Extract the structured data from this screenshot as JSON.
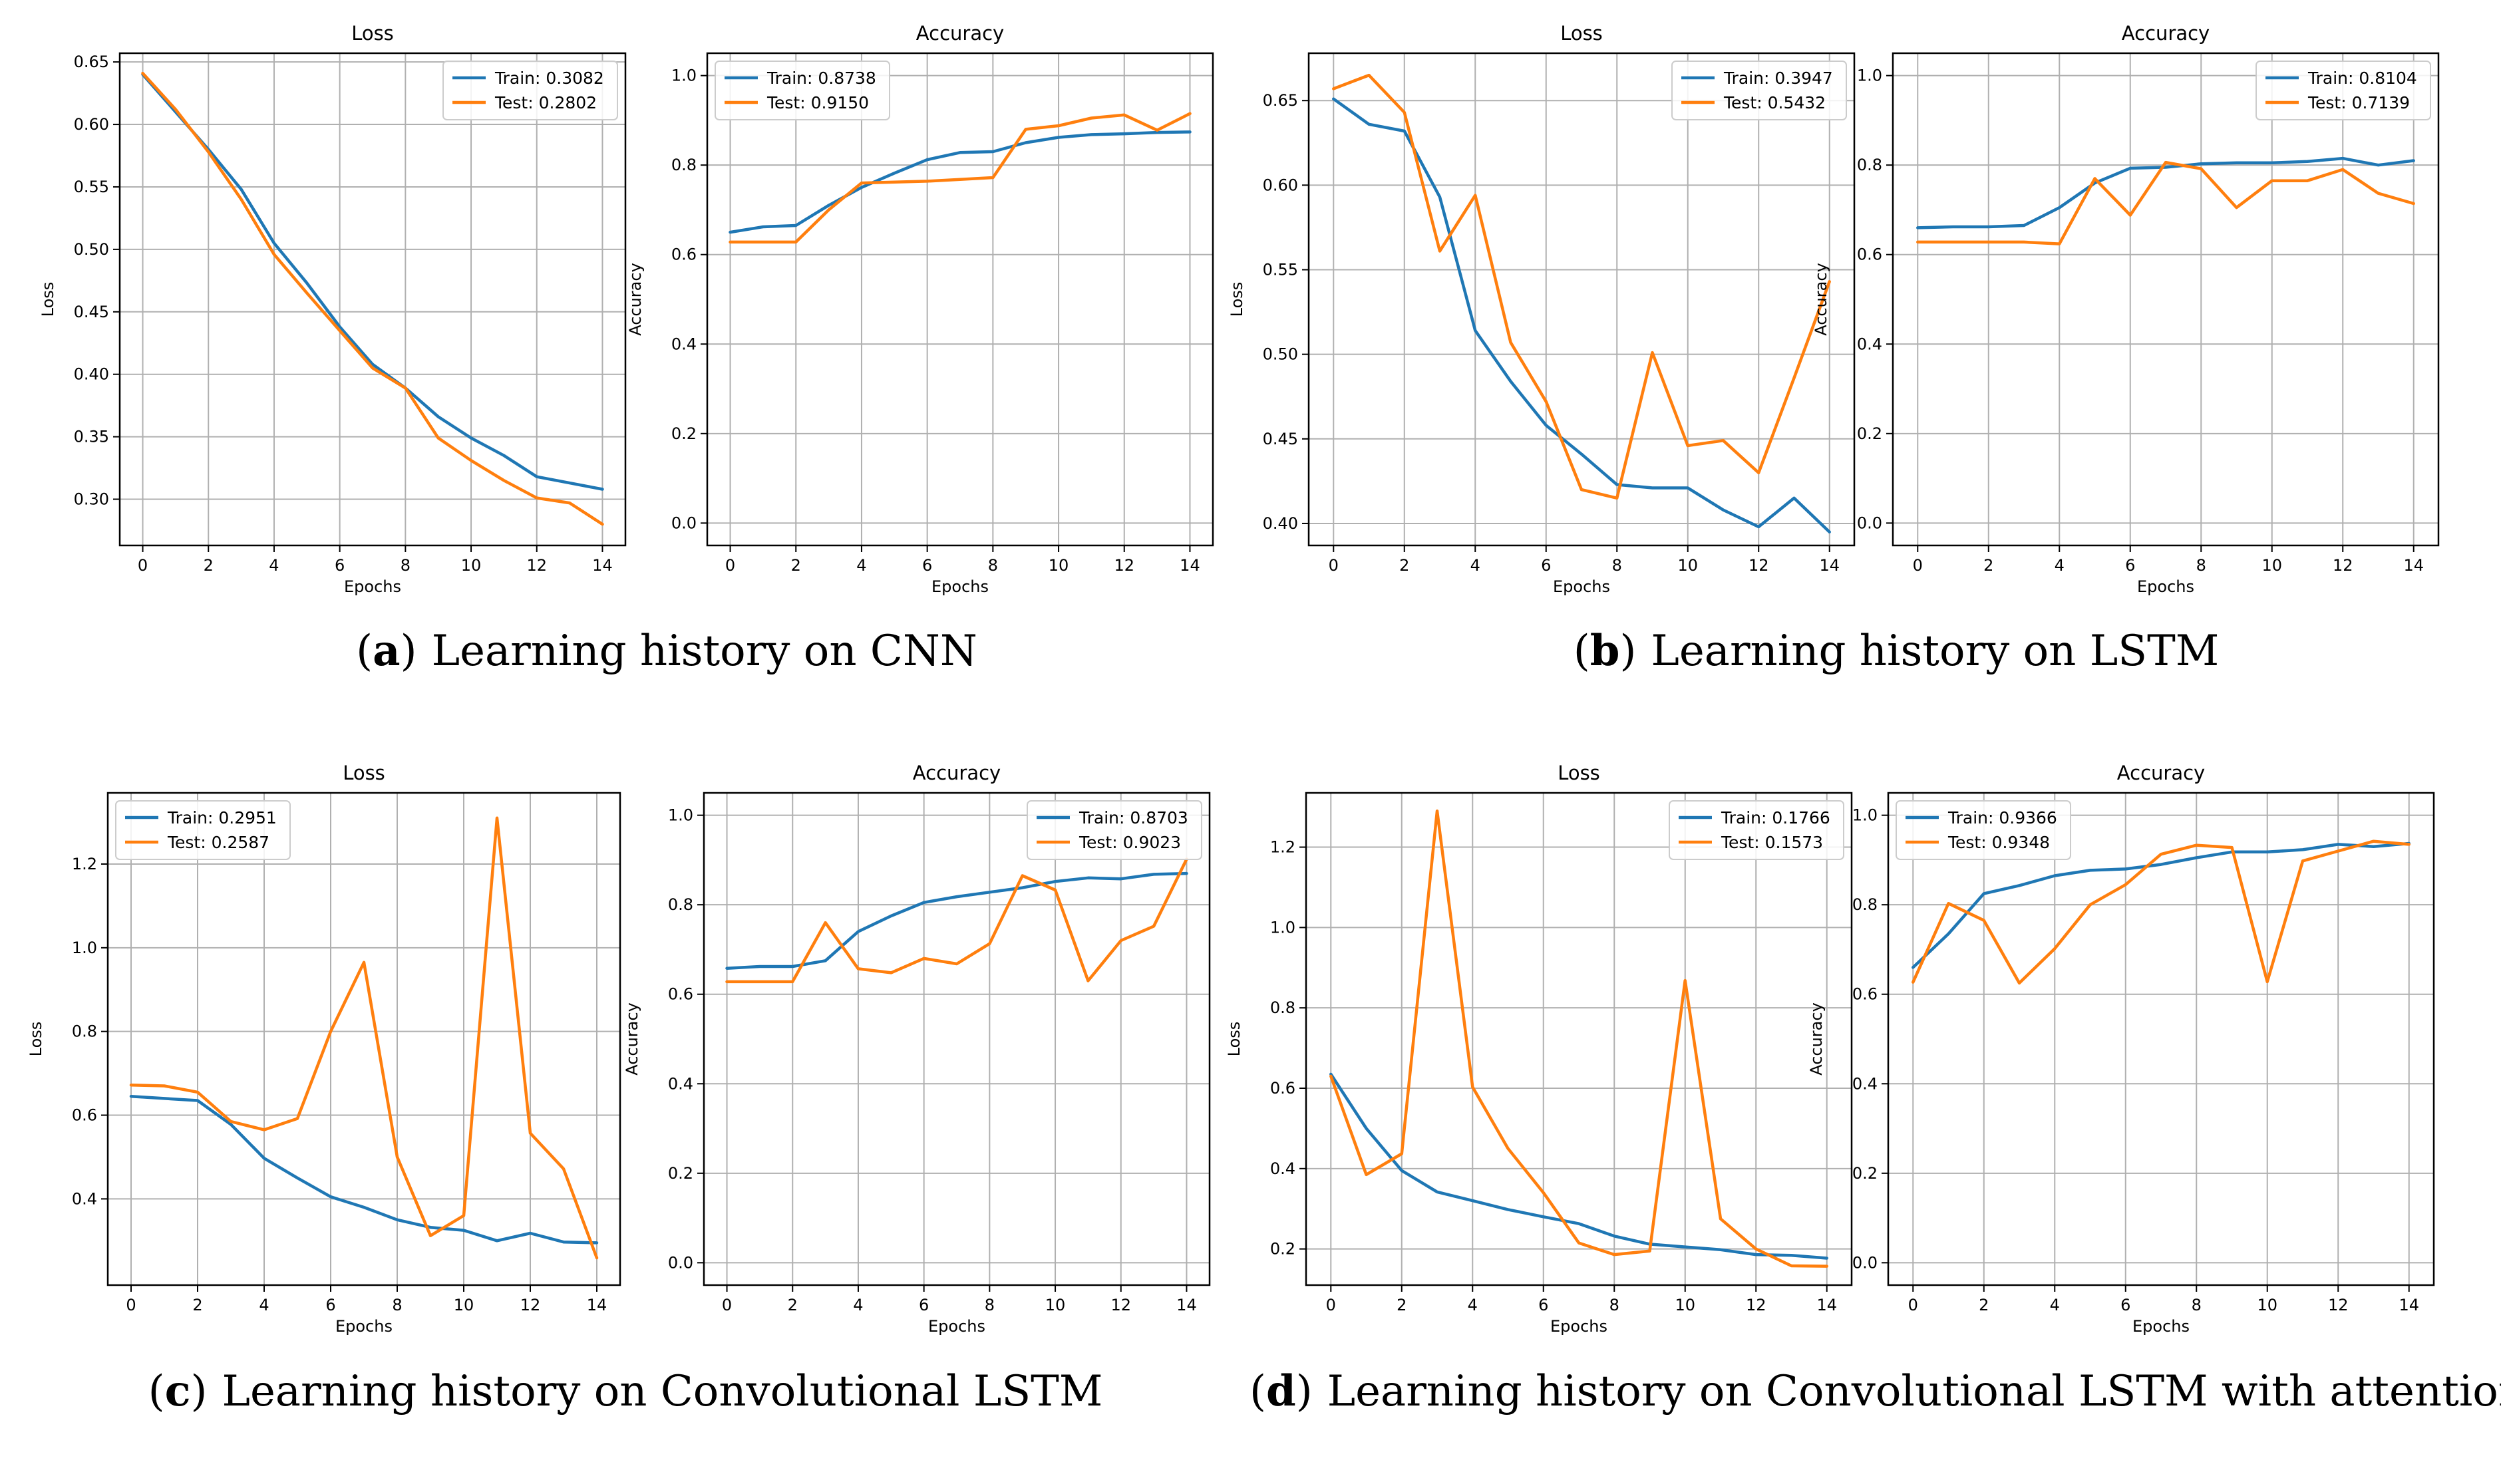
{
  "colors": {
    "train": "#1f77b4",
    "test": "#ff7f0e",
    "grid": "#b0b0b0",
    "axis": "#000000"
  },
  "captions": [
    {
      "letter": "a",
      "open": "(",
      "close": ")",
      "text": "Learning history on CNN"
    },
    {
      "letter": "b",
      "open": "(",
      "close": ")",
      "text": "Learning history on LSTM"
    },
    {
      "letter": "c",
      "open": "(",
      "close": ")",
      "text": "Learning history on Convolutional LSTM"
    },
    {
      "letter": "d",
      "open": "(",
      "close": ")",
      "text": "Learning history on Convolutional LSTM with attention"
    }
  ],
  "chart_data": [
    {
      "id": "a-loss",
      "type": "line",
      "title": "Loss",
      "xlabel": "Epochs",
      "ylabel": "Loss",
      "xlim": [
        -0.7,
        14.7
      ],
      "ylim": [
        0.263,
        0.657
      ],
      "xticks": [
        0,
        2,
        4,
        6,
        8,
        10,
        12,
        14
      ],
      "yticks": [
        0.3,
        0.35,
        0.4,
        0.45,
        0.5,
        0.55,
        0.6,
        0.65
      ],
      "ytick_labels": [
        "0.30",
        "0.35",
        "0.40",
        "0.45",
        "0.50",
        "0.55",
        "0.60",
        "0.65"
      ],
      "legend_loc": "upper right",
      "x": [
        0,
        1,
        2,
        3,
        4,
        5,
        6,
        7,
        8,
        9,
        10,
        11,
        12,
        13,
        14
      ],
      "series": [
        {
          "name": "Train: 0.3082",
          "color": "#1f77b4",
          "values": [
            0.64,
            0.61,
            0.58,
            0.548,
            0.505,
            0.473,
            0.438,
            0.408,
            0.389,
            0.366,
            0.349,
            0.335,
            0.318,
            0.313,
            0.308
          ]
        },
        {
          "name": "Test: 0.2802",
          "color": "#ff7f0e",
          "values": [
            0.641,
            0.612,
            0.578,
            0.54,
            0.496,
            0.465,
            0.435,
            0.405,
            0.389,
            0.349,
            0.331,
            0.315,
            0.301,
            0.297,
            0.28
          ]
        }
      ]
    },
    {
      "id": "a-acc",
      "type": "line",
      "title": "Accuracy",
      "xlabel": "Epochs",
      "ylabel": "Accuracy",
      "xlim": [
        -0.7,
        14.7
      ],
      "ylim": [
        -0.05,
        1.05
      ],
      "xticks": [
        0,
        2,
        4,
        6,
        8,
        10,
        12,
        14
      ],
      "yticks": [
        0.0,
        0.2,
        0.4,
        0.6,
        0.8,
        1.0
      ],
      "ytick_labels": [
        "0.0",
        "0.2",
        "0.4",
        "0.6",
        "0.8",
        "1.0"
      ],
      "legend_loc": "upper left",
      "x": [
        0,
        1,
        2,
        3,
        4,
        5,
        6,
        7,
        8,
        9,
        10,
        11,
        12,
        13,
        14
      ],
      "series": [
        {
          "name": "Train: 0.8738",
          "color": "#1f77b4",
          "values": [
            0.65,
            0.662,
            0.665,
            0.71,
            0.75,
            0.782,
            0.812,
            0.828,
            0.83,
            0.85,
            0.862,
            0.868,
            0.87,
            0.873,
            0.874
          ]
        },
        {
          "name": "Test: 0.9150",
          "color": "#ff7f0e",
          "values": [
            0.628,
            0.628,
            0.628,
            0.7,
            0.76,
            0.762,
            0.764,
            0.768,
            0.772,
            0.88,
            0.888,
            0.905,
            0.912,
            0.878,
            0.915
          ]
        }
      ]
    },
    {
      "id": "b-loss",
      "type": "line",
      "title": "Loss",
      "xlabel": "Epochs",
      "ylabel": "Loss",
      "xlim": [
        -0.7,
        14.7
      ],
      "ylim": [
        0.387,
        0.678
      ],
      "xticks": [
        0,
        2,
        4,
        6,
        8,
        10,
        12,
        14
      ],
      "yticks": [
        0.4,
        0.45,
        0.5,
        0.55,
        0.6,
        0.65
      ],
      "ytick_labels": [
        "0.40",
        "0.45",
        "0.50",
        "0.55",
        "0.60",
        "0.65"
      ],
      "legend_loc": "upper right",
      "x": [
        0,
        1,
        2,
        3,
        4,
        5,
        6,
        7,
        8,
        9,
        10,
        11,
        12,
        13,
        14
      ],
      "series": [
        {
          "name": "Train: 0.3947",
          "color": "#1f77b4",
          "values": [
            0.651,
            0.636,
            0.632,
            0.593,
            0.514,
            0.484,
            0.458,
            0.441,
            0.423,
            0.421,
            0.421,
            0.408,
            0.398,
            0.415,
            0.395
          ]
        },
        {
          "name": "Test: 0.5432",
          "color": "#ff7f0e",
          "values": [
            0.657,
            0.665,
            0.643,
            0.561,
            0.594,
            0.507,
            0.472,
            0.42,
            0.415,
            0.501,
            0.446,
            0.449,
            0.43,
            0.486,
            0.543
          ]
        }
      ]
    },
    {
      "id": "b-acc",
      "type": "line",
      "title": "Accuracy",
      "xlabel": "Epochs",
      "ylabel": "Accuracy",
      "xlim": [
        -0.7,
        14.7
      ],
      "ylim": [
        -0.05,
        1.05
      ],
      "xticks": [
        0,
        2,
        4,
        6,
        8,
        10,
        12,
        14
      ],
      "yticks": [
        0.0,
        0.2,
        0.4,
        0.6,
        0.8,
        1.0
      ],
      "ytick_labels": [
        "0.0",
        "0.2",
        "0.4",
        "0.6",
        "0.8",
        "1.0"
      ],
      "legend_loc": "upper right",
      "x": [
        0,
        1,
        2,
        3,
        4,
        5,
        6,
        7,
        8,
        9,
        10,
        11,
        12,
        13,
        14
      ],
      "series": [
        {
          "name": "Train: 0.8104",
          "color": "#1f77b4",
          "values": [
            0.66,
            0.662,
            0.662,
            0.665,
            0.705,
            0.76,
            0.793,
            0.795,
            0.803,
            0.805,
            0.805,
            0.808,
            0.815,
            0.8,
            0.81
          ]
        },
        {
          "name": "Test: 0.7139",
          "color": "#ff7f0e",
          "values": [
            0.628,
            0.628,
            0.628,
            0.628,
            0.624,
            0.77,
            0.688,
            0.806,
            0.792,
            0.705,
            0.765,
            0.765,
            0.79,
            0.737,
            0.714
          ]
        }
      ]
    },
    {
      "id": "c-loss",
      "type": "line",
      "title": "Loss",
      "xlabel": "Epochs",
      "ylabel": "Loss",
      "xlim": [
        -0.7,
        14.7
      ],
      "ylim": [
        0.194,
        1.37
      ],
      "xticks": [
        0,
        2,
        4,
        6,
        8,
        10,
        12,
        14
      ],
      "yticks": [
        0.4,
        0.6,
        0.8,
        1.0,
        1.2
      ],
      "ytick_labels": [
        "0.4",
        "0.6",
        "0.8",
        "1.0",
        "1.2"
      ],
      "legend_loc": "upper left",
      "x": [
        0,
        1,
        2,
        3,
        4,
        5,
        6,
        7,
        8,
        9,
        10,
        11,
        12,
        13,
        14
      ],
      "series": [
        {
          "name": "Train: 0.2951",
          "color": "#1f77b4",
          "values": [
            0.645,
            0.64,
            0.635,
            0.578,
            0.497,
            0.45,
            0.405,
            0.38,
            0.35,
            0.332,
            0.325,
            0.3,
            0.318,
            0.297,
            0.295
          ]
        },
        {
          "name": "Test: 0.2587",
          "color": "#ff7f0e",
          "values": [
            0.672,
            0.67,
            0.655,
            0.585,
            0.565,
            0.592,
            0.8,
            0.965,
            0.5,
            0.312,
            0.36,
            1.31,
            0.557,
            0.472,
            0.259
          ]
        }
      ]
    },
    {
      "id": "c-acc",
      "type": "line",
      "title": "Accuracy",
      "xlabel": "Epochs",
      "ylabel": "Accuracy",
      "xlim": [
        -0.7,
        14.7
      ],
      "ylim": [
        -0.05,
        1.05
      ],
      "xticks": [
        0,
        2,
        4,
        6,
        8,
        10,
        12,
        14
      ],
      "yticks": [
        0.0,
        0.2,
        0.4,
        0.6,
        0.8,
        1.0
      ],
      "ytick_labels": [
        "0.0",
        "0.2",
        "0.4",
        "0.6",
        "0.8",
        "1.0"
      ],
      "legend_loc": "upper right",
      "x": [
        0,
        1,
        2,
        3,
        4,
        5,
        6,
        7,
        8,
        9,
        10,
        11,
        12,
        13,
        14
      ],
      "series": [
        {
          "name": "Train: 0.8703",
          "color": "#1f77b4",
          "values": [
            0.658,
            0.662,
            0.662,
            0.675,
            0.74,
            0.775,
            0.805,
            0.818,
            0.828,
            0.838,
            0.852,
            0.86,
            0.858,
            0.868,
            0.87
          ]
        },
        {
          "name": "Test: 0.9023",
          "color": "#ff7f0e",
          "values": [
            0.628,
            0.628,
            0.628,
            0.76,
            0.657,
            0.648,
            0.68,
            0.668,
            0.713,
            0.865,
            0.833,
            0.63,
            0.72,
            0.752,
            0.902
          ]
        }
      ]
    },
    {
      "id": "d-loss",
      "type": "line",
      "title": "Loss",
      "xlabel": "Epochs",
      "ylabel": "Loss",
      "xlim": [
        -0.7,
        14.7
      ],
      "ylim": [
        0.11,
        1.335
      ],
      "xticks": [
        0,
        2,
        4,
        6,
        8,
        10,
        12,
        14
      ],
      "yticks": [
        0.2,
        0.4,
        0.6,
        0.8,
        1.0,
        1.2
      ],
      "ytick_labels": [
        "0.2",
        "0.4",
        "0.6",
        "0.8",
        "1.0",
        "1.2"
      ],
      "legend_loc": "upper right",
      "x": [
        0,
        1,
        2,
        3,
        4,
        5,
        6,
        7,
        8,
        9,
        10,
        11,
        12,
        13,
        14
      ],
      "series": [
        {
          "name": "Train: 0.1766",
          "color": "#1f77b4",
          "values": [
            0.635,
            0.5,
            0.395,
            0.342,
            0.32,
            0.298,
            0.28,
            0.263,
            0.232,
            0.212,
            0.205,
            0.198,
            0.186,
            0.184,
            0.177
          ]
        },
        {
          "name": "Test: 0.1573",
          "color": "#ff7f0e",
          "values": [
            0.63,
            0.385,
            0.437,
            1.29,
            0.603,
            0.45,
            0.34,
            0.215,
            0.186,
            0.195,
            0.868,
            0.275,
            0.2,
            0.158,
            0.157
          ]
        }
      ]
    },
    {
      "id": "d-acc",
      "type": "line",
      "title": "Accuracy",
      "xlabel": "Epochs",
      "ylabel": "Accuracy",
      "xlim": [
        -0.7,
        14.7
      ],
      "ylim": [
        -0.05,
        1.05
      ],
      "xticks": [
        0,
        2,
        4,
        6,
        8,
        10,
        12,
        14
      ],
      "yticks": [
        0.0,
        0.2,
        0.4,
        0.6,
        0.8,
        1.0
      ],
      "ytick_labels": [
        "0.0",
        "0.2",
        "0.4",
        "0.6",
        "0.8",
        "1.0"
      ],
      "legend_loc": "upper left",
      "x": [
        0,
        1,
        2,
        3,
        4,
        5,
        6,
        7,
        8,
        9,
        10,
        11,
        12,
        13,
        14
      ],
      "series": [
        {
          "name": "Train: 0.9366",
          "color": "#1f77b4",
          "values": [
            0.66,
            0.735,
            0.825,
            0.843,
            0.865,
            0.877,
            0.88,
            0.89,
            0.905,
            0.918,
            0.918,
            0.923,
            0.935,
            0.93,
            0.937
          ]
        },
        {
          "name": "Test: 0.9348",
          "color": "#ff7f0e",
          "values": [
            0.627,
            0.803,
            0.765,
            0.625,
            0.702,
            0.8,
            0.845,
            0.913,
            0.933,
            0.928,
            0.628,
            0.898,
            0.92,
            0.942,
            0.935
          ]
        }
      ]
    }
  ]
}
